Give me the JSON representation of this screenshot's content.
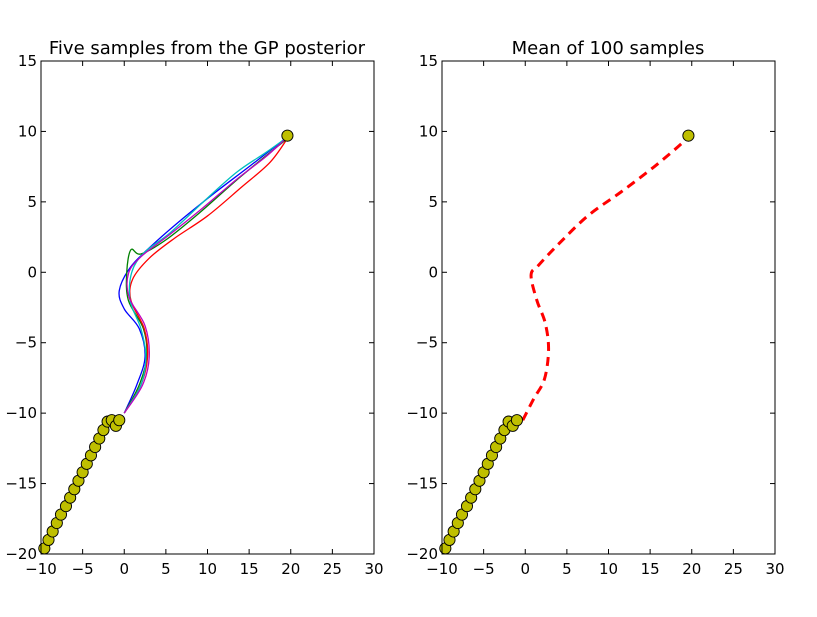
{
  "chart_data": [
    {
      "type": "line",
      "title": "Five samples from the GP posterior",
      "xlim": [
        -10,
        30
      ],
      "ylim": [
        -20,
        15
      ],
      "xticks": [
        -10,
        -5,
        0,
        5,
        10,
        15,
        20,
        25,
        30
      ],
      "yticks": [
        -20,
        -15,
        -10,
        -5,
        0,
        5,
        10,
        15
      ],
      "xtick_labels": [
        "−10",
        "−5",
        "0",
        "5",
        "10",
        "15",
        "20",
        "25",
        "30"
      ],
      "ytick_labels": [
        "−20",
        "−15",
        "−10",
        "−5",
        "0",
        "5",
        "10",
        "15"
      ],
      "observations": {
        "color": "#bfbf00",
        "points": [
          [
            -9.6,
            -19.6
          ],
          [
            -9.1,
            -19.0
          ],
          [
            -8.6,
            -18.4
          ],
          [
            -8.1,
            -17.8
          ],
          [
            -7.6,
            -17.2
          ],
          [
            -7.0,
            -16.6
          ],
          [
            -6.5,
            -16.0
          ],
          [
            -6.0,
            -15.4
          ],
          [
            -5.5,
            -14.8
          ],
          [
            -5.0,
            -14.2
          ],
          [
            -4.5,
            -13.6
          ],
          [
            -4.0,
            -13.0
          ],
          [
            -3.5,
            -12.4
          ],
          [
            -3.0,
            -11.8
          ],
          [
            -2.5,
            -11.2
          ],
          [
            -2.0,
            -10.6
          ],
          [
            -1.5,
            -10.5
          ],
          [
            -1.0,
            -10.9
          ],
          [
            -0.6,
            -10.5
          ],
          [
            19.6,
            9.7
          ]
        ]
      },
      "series": [
        {
          "color": "#0000ff",
          "points": [
            [
              0,
              -10
            ],
            [
              1.5,
              -8
            ],
            [
              2.5,
              -6
            ],
            [
              1.8,
              -4
            ],
            [
              0,
              -2.6
            ],
            [
              -0.6,
              -1.3
            ],
            [
              0.8,
              0.4
            ],
            [
              3.5,
              2
            ],
            [
              7,
              3.8
            ],
            [
              11,
              5.7
            ],
            [
              15,
              7.5
            ],
            [
              19.6,
              9.6
            ]
          ]
        },
        {
          "color": "#008000",
          "points": [
            [
              0,
              -10
            ],
            [
              1.8,
              -8
            ],
            [
              2.7,
              -6
            ],
            [
              2.3,
              -4
            ],
            [
              0.5,
              -2
            ],
            [
              0.3,
              0
            ],
            [
              0.8,
              1.6
            ],
            [
              2,
              1.3
            ],
            [
              5,
              2.3
            ],
            [
              9,
              4.2
            ],
            [
              14,
              6.8
            ],
            [
              19.6,
              9.5
            ]
          ]
        },
        {
          "color": "#ff0000",
          "points": [
            [
              0,
              -10
            ],
            [
              2,
              -8
            ],
            [
              2.8,
              -6
            ],
            [
              2.4,
              -4
            ],
            [
              0.8,
              -2
            ],
            [
              1,
              -0.5
            ],
            [
              3,
              1
            ],
            [
              6,
              2.4
            ],
            [
              10,
              4
            ],
            [
              14,
              6
            ],
            [
              17.5,
              7.8
            ],
            [
              19.6,
              9.5
            ]
          ]
        },
        {
          "color": "#00bfbf",
          "points": [
            [
              0,
              -10
            ],
            [
              2,
              -8
            ],
            [
              2.6,
              -6
            ],
            [
              2,
              -4
            ],
            [
              0.7,
              -2
            ],
            [
              0.9,
              0
            ],
            [
              2.4,
              1.4
            ],
            [
              5.5,
              2.8
            ],
            [
              9.5,
              5
            ],
            [
              13.5,
              7.1
            ],
            [
              17,
              8.5
            ],
            [
              19.6,
              9.6
            ]
          ]
        },
        {
          "color": "#bf00bf",
          "points": [
            [
              0,
              -10
            ],
            [
              2.2,
              -8
            ],
            [
              3,
              -6
            ],
            [
              2.5,
              -3.8
            ],
            [
              0.6,
              -1.8
            ],
            [
              0.5,
              -0.1
            ],
            [
              2,
              1.1
            ],
            [
              5.5,
              2.7
            ],
            [
              9.5,
              4.6
            ],
            [
              13.5,
              6.6
            ],
            [
              17,
              8.2
            ],
            [
              19.6,
              9.6
            ]
          ]
        }
      ]
    },
    {
      "type": "line",
      "title": "Mean of 100 samples",
      "xlim": [
        -10,
        30
      ],
      "ylim": [
        -20,
        15
      ],
      "xticks": [
        -10,
        -5,
        0,
        5,
        10,
        15,
        20,
        25,
        30
      ],
      "yticks": [
        -20,
        -15,
        -10,
        -5,
        0,
        5,
        10,
        15
      ],
      "xtick_labels": [
        "−10",
        "−5",
        "0",
        "5",
        "10",
        "15",
        "20",
        "25",
        "30"
      ],
      "ytick_labels": [
        "−20",
        "−15",
        "−10",
        "−5",
        "0",
        "5",
        "10",
        "15"
      ],
      "observations": {
        "color": "#bfbf00",
        "points": [
          [
            -9.6,
            -19.6
          ],
          [
            -9.1,
            -19.0
          ],
          [
            -8.6,
            -18.4
          ],
          [
            -8.1,
            -17.8
          ],
          [
            -7.6,
            -17.2
          ],
          [
            -7.0,
            -16.6
          ],
          [
            -6.5,
            -16.0
          ],
          [
            -6.0,
            -15.4
          ],
          [
            -5.5,
            -14.8
          ],
          [
            -5.0,
            -14.2
          ],
          [
            -4.5,
            -13.6
          ],
          [
            -4.0,
            -13.0
          ],
          [
            -3.5,
            -12.4
          ],
          [
            -3.0,
            -11.8
          ],
          [
            -2.5,
            -11.2
          ],
          [
            -2.0,
            -10.6
          ],
          [
            -1.5,
            -10.9
          ],
          [
            -1.0,
            -10.5
          ],
          [
            19.6,
            9.7
          ]
        ]
      },
      "series": [
        {
          "color": "#ff0000",
          "dashed": true,
          "points": [
            [
              -0.3,
              -10.5
            ],
            [
              1,
              -9
            ],
            [
              2.3,
              -7.6
            ],
            [
              2.8,
              -5.5
            ],
            [
              2.4,
              -3.6
            ],
            [
              1.4,
              -2
            ],
            [
              0.7,
              -0.2
            ],
            [
              1.6,
              0.5
            ],
            [
              4,
              2
            ],
            [
              7.5,
              4
            ],
            [
              11.5,
              5.7
            ],
            [
              15.5,
              7.5
            ],
            [
              18.7,
              9.1
            ],
            [
              19.6,
              9.7
            ]
          ]
        }
      ]
    }
  ]
}
